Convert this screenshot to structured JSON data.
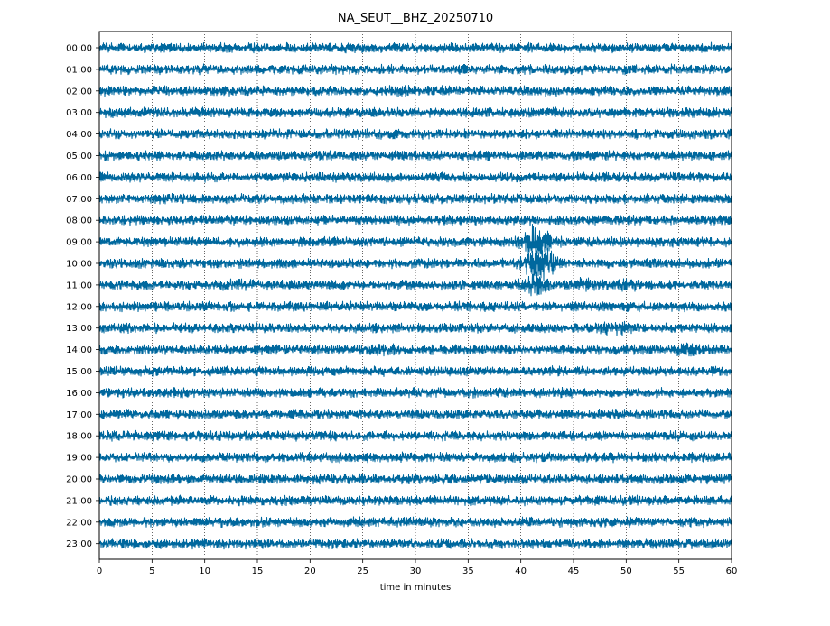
{
  "chart_data": {
    "type": "line",
    "title": "NA_SEUT__BHZ_20250710",
    "xlabel": "time in minutes",
    "ylabel": "",
    "xlim": [
      0,
      60
    ],
    "x_ticks": [
      0,
      5,
      10,
      15,
      20,
      25,
      30,
      35,
      40,
      45,
      50,
      55,
      60
    ],
    "x_tick_labels": [
      "0",
      "5",
      "10",
      "15",
      "20",
      "25",
      "30",
      "35",
      "40",
      "45",
      "50",
      "55",
      "60"
    ],
    "row_labels": [
      "00:00",
      "01:00",
      "02:00",
      "03:00",
      "04:00",
      "05:00",
      "06:00",
      "07:00",
      "08:00",
      "09:00",
      "10:00",
      "11:00",
      "12:00",
      "13:00",
      "14:00",
      "15:00",
      "16:00",
      "17:00",
      "18:00",
      "19:00",
      "20:00",
      "21:00",
      "22:00",
      "23:00"
    ],
    "vertical_grid": "dotted",
    "trace_color": "#00689e",
    "events": [
      {
        "row": "09:00",
        "minute": 41.5,
        "relative_amplitude": 3.5
      },
      {
        "row": "10:00",
        "minute": 41.8,
        "relative_amplitude": 4.0
      },
      {
        "row": "11:00",
        "minute": 41.6,
        "relative_amplitude": 2.5
      },
      {
        "row": "11:00",
        "minute": 45.5,
        "relative_amplitude": 1.6
      },
      {
        "row": "11:00",
        "minute": 50.0,
        "relative_amplitude": 1.4
      },
      {
        "row": "11:00",
        "minute": 13.0,
        "relative_amplitude": 1.3
      },
      {
        "row": "13:00",
        "minute": 49.0,
        "relative_amplitude": 1.8
      },
      {
        "row": "14:00",
        "minute": 27.0,
        "relative_amplitude": 1.6
      },
      {
        "row": "14:00",
        "minute": 56.0,
        "relative_amplitude": 1.6
      },
      {
        "row": "02:00",
        "minute": 28.5,
        "relative_amplitude": 1.3
      }
    ]
  }
}
